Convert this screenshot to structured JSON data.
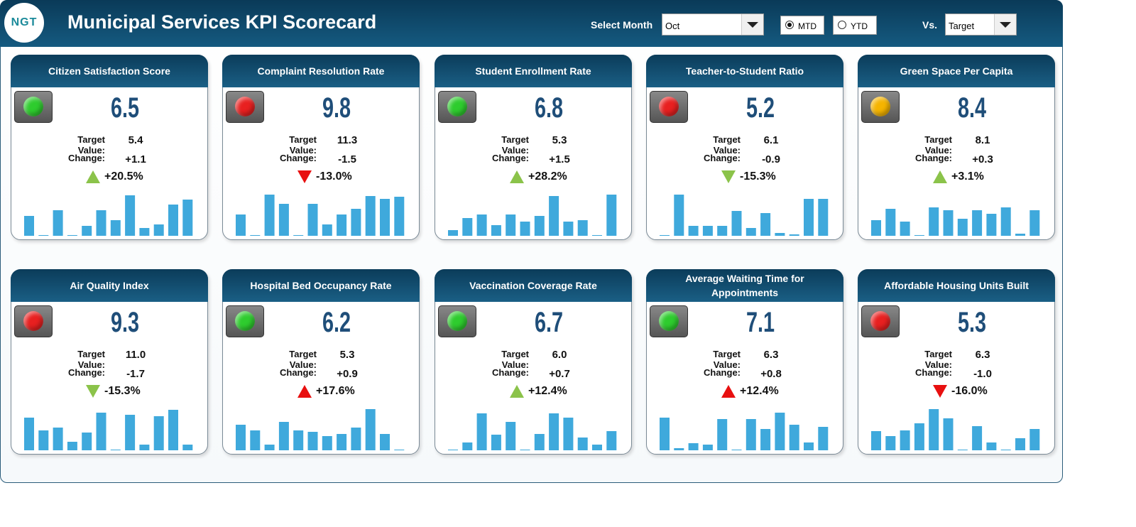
{
  "header": {
    "logo": "NGT",
    "title": "Municipal Services KPI Scorecard",
    "controls": {
      "month_label": "Select Month",
      "month": "Oct",
      "period_options": [
        "MTD",
        "YTD"
      ],
      "selected_period": "MTD",
      "vs_label": "Vs.",
      "vs": "Target"
    }
  },
  "labels": {
    "target": "Target Value:",
    "change": "Change:"
  },
  "sparkline_color": "#3fa9dc",
  "cards": [
    {
      "title": "Citizen Satisfaction Score",
      "value": "6.5",
      "target": "5.4",
      "change": "+1.1",
      "change_pct": "+20.5%",
      "status_color": "#2ecc2e",
      "arrow": "up",
      "arrow_color": "#8bc34a",
      "sparkline": [
        28,
        1,
        36,
        1,
        14,
        36,
        22,
        57,
        11,
        16,
        44,
        51
      ]
    },
    {
      "title": "Complaint Resolution Rate",
      "value": "9.8",
      "target": "11.3",
      "change": "-1.5",
      "change_pct": "-13.0%",
      "status_color": "#e82020",
      "arrow": "down",
      "arrow_color": "#e81010",
      "sparkline": [
        30,
        1,
        58,
        45,
        1,
        45,
        16,
        30,
        38,
        56,
        52,
        55
      ]
    },
    {
      "title": "Student Enrollment Rate",
      "value": "6.8",
      "target": "5.3",
      "change": "+1.5",
      "change_pct": "+28.2%",
      "status_color": "#2ecc2e",
      "arrow": "up",
      "arrow_color": "#8bc34a",
      "sparkline": [
        8,
        25,
        30,
        15,
        30,
        20,
        28,
        56,
        20,
        22,
        1,
        58
      ]
    },
    {
      "title": "Teacher-to-Student Ratio",
      "value": "5.2",
      "target": "6.1",
      "change": "-0.9",
      "change_pct": "-15.3%",
      "status_color": "#e82020",
      "arrow": "down",
      "arrow_color": "#8bc34a",
      "sparkline": [
        1,
        58,
        14,
        14,
        14,
        35,
        11,
        32,
        4,
        2,
        52,
        52
      ]
    },
    {
      "title": "Green Space Per Capita",
      "value": "8.4",
      "target": "8.1",
      "change": "+0.3",
      "change_pct": "+3.1%",
      "status_color": "#f5b400",
      "arrow": "up",
      "arrow_color": "#8bc34a",
      "sparkline": [
        22,
        38,
        20,
        1,
        40,
        36,
        24,
        36,
        31,
        40,
        3,
        36
      ]
    },
    {
      "title": "Air Quality Index",
      "value": "9.3",
      "target": "11.0",
      "change": "-1.7",
      "change_pct": "-15.3%",
      "status_color": "#e82020",
      "arrow": "down",
      "arrow_color": "#8bc34a",
      "sparkline": [
        46,
        28,
        32,
        12,
        25,
        53,
        1,
        50,
        8,
        48,
        57,
        8
      ]
    },
    {
      "title": "Hospital Bed Occupancy Rate",
      "value": "6.2",
      "target": "5.3",
      "change": "+0.9",
      "change_pct": "+17.6%",
      "status_color": "#2ecc2e",
      "arrow": "up",
      "arrow_color": "#e81010",
      "sparkline": [
        36,
        28,
        8,
        40,
        28,
        26,
        20,
        23,
        32,
        58,
        23,
        1
      ]
    },
    {
      "title": "Vaccination Coverage Rate",
      "value": "6.7",
      "target": "6.0",
      "change": "+0.7",
      "change_pct": "+12.4%",
      "status_color": "#2ecc2e",
      "arrow": "up",
      "arrow_color": "#8bc34a",
      "sparkline": [
        1,
        11,
        52,
        22,
        40,
        1,
        23,
        52,
        46,
        18,
        8,
        27
      ]
    },
    {
      "title": "Average Waiting Time for Appointments",
      "value": "7.1",
      "target": "6.3",
      "change": "+0.8",
      "change_pct": "+12.4%",
      "status_color": "#2ecc2e",
      "arrow": "up",
      "arrow_color": "#e81010",
      "sparkline": [
        46,
        3,
        10,
        8,
        44,
        1,
        44,
        30,
        53,
        36,
        11,
        33
      ]
    },
    {
      "title": "Affordable Housing Units Built",
      "value": "5.3",
      "target": "6.3",
      "change": "-1.0",
      "change_pct": "-16.0%",
      "status_color": "#e82020",
      "arrow": "down",
      "arrow_color": "#e81010",
      "sparkline": [
        27,
        20,
        28,
        38,
        58,
        45,
        1,
        34,
        11,
        1,
        17,
        30
      ]
    }
  ]
}
